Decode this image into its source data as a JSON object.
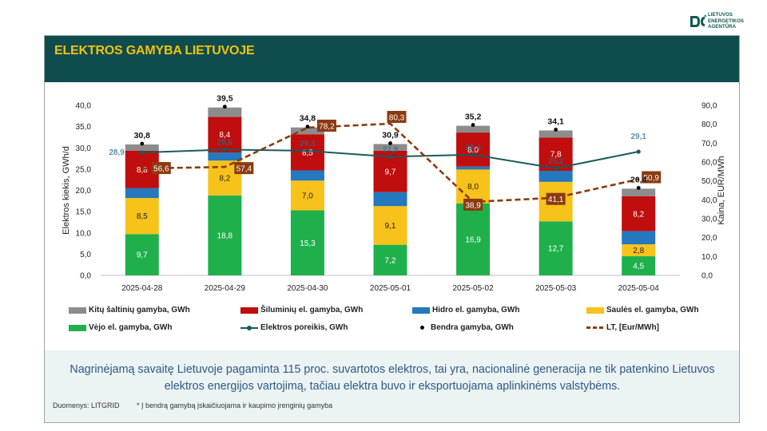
{
  "logo": {
    "line1": "LIETUVOS",
    "line2": "ENERGETIKOS",
    "line3": "AGENTŪRA",
    "color": "#0f5a52"
  },
  "header": {
    "title": "ELEKTROS GAMYBA LIETUVOJE"
  },
  "chart_data": {
    "type": "bar",
    "stacked": true,
    "categories": [
      "2025-04-28",
      "2025-04-29",
      "2025-04-30",
      "2025-05-01",
      "2025-05-02",
      "2025-05-03",
      "2025-05-04"
    ],
    "ylabel_left": "Elektros kiekis, GWh/d",
    "ylabel_right": "Kaina, EUR/MWh",
    "ylim_left": [
      0,
      40
    ],
    "ylim_right": [
      0,
      90
    ],
    "yticks_left": [
      "0,0",
      "5,0",
      "10,0",
      "15,0",
      "20,0",
      "25,0",
      "30,0",
      "35,0",
      "40,0"
    ],
    "yticks_right": [
      "0,0",
      "10,0",
      "20,0",
      "30,0",
      "40,0",
      "50,0",
      "60,0",
      "70,0",
      "80,0",
      "90,0"
    ],
    "series": [
      {
        "name": "Vėjo el. gamyba, GWh",
        "color": "#1fb04c",
        "values": [
          9.7,
          18.8,
          15.3,
          7.2,
          16.9,
          12.7,
          4.5
        ],
        "labels": [
          "9,7",
          "18,8",
          "15,3",
          "7,2",
          "16,9",
          "12,7",
          "4,5"
        ]
      },
      {
        "name": "Saulės el. gamyba, GWh",
        "color": "#f7c21a",
        "values": [
          8.5,
          8.2,
          7.0,
          9.1,
          8.0,
          9.3,
          2.8
        ],
        "labels": [
          "8,5",
          "8,2",
          "7,0",
          "9,1",
          "8,0",
          "9,3",
          "2,8"
        ]
      },
      {
        "name": "Hidro el. gamyba, GWh",
        "color": "#2378be",
        "values": [
          2.3,
          1.9,
          2.4,
          3.3,
          0.7,
          2.6,
          3.1
        ]
      },
      {
        "name": "Šiluminių el. gamyba, GWh",
        "color": "#c00d0d",
        "values": [
          8.8,
          8.4,
          8.5,
          9.7,
          8.0,
          7.8,
          8.2
        ],
        "labels": [
          "8,8",
          "8,4",
          "8,5",
          "9,7",
          "8,0",
          "7,8",
          "8,2"
        ]
      },
      {
        "name": "Kitų šaltinių gamyba,  GWh",
        "color": "#8c8c8c",
        "values": [
          1.5,
          2.2,
          1.6,
          1.6,
          1.6,
          1.7,
          1.8
        ]
      }
    ],
    "total": {
      "name": "Bendra gamyba, GWh",
      "values": [
        30.8,
        39.5,
        34.8,
        30.9,
        35.2,
        34.1,
        20.4
      ],
      "labels": [
        "30,8",
        "39,5",
        "34,8",
        "30,9",
        "35,2",
        "34,1",
        "20,4"
      ]
    },
    "demand": {
      "name": "Elektros poreikis, GWh",
      "color": "#1a5a5a",
      "values": [
        28.9,
        29.6,
        29.3,
        27.9,
        28.4,
        25.2,
        29.1
      ],
      "labels": [
        "28,9",
        "29,6",
        "29,3",
        "27,9",
        "28,4",
        "25,2",
        "29,1"
      ]
    },
    "price": {
      "name": "LT, [Eur/MWh]",
      "color": "#8b3a0f",
      "values": [
        56.6,
        57.4,
        78.2,
        80.3,
        38.9,
        41.1,
        50.9
      ],
      "labels": [
        "56,6",
        "57,4",
        "78,2",
        "80,3",
        "38,9",
        "41,1",
        "50,9"
      ]
    }
  },
  "note": {
    "text": "Nagrinėjamą savaitę Lietuvoje pagaminta 115 proc. suvartotos elektros, tai yra, nacionalinė generacija ne tik patenkino Lietuvos elektros energijos vartojimą, tačiau elektra buvo ir eksportuojama aplinkinėms valstybėms.",
    "source": "Duomenys: LITGRID",
    "footnote": "* Į bendrą gamybą įskaičiuojama ir kaupimo įrenginių gamyba"
  }
}
